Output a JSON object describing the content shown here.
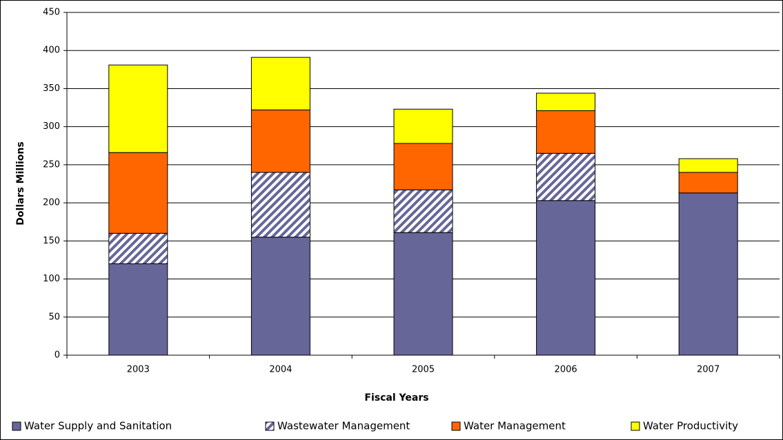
{
  "chart_data": {
    "type": "stacked_bar",
    "x_label": "Fiscal Years",
    "y_label": "Dollars Millions",
    "categories": [
      "2003",
      "2004",
      "2005",
      "2006",
      "2007"
    ],
    "series": [
      {
        "name": "Water Supply and Sanitation",
        "color": "#666699",
        "values": [
          120,
          155,
          161,
          203,
          213
        ]
      },
      {
        "name": "Wastewater Management",
        "color": "#666699",
        "pattern": "hatch",
        "values": [
          40,
          85,
          56,
          62,
          0
        ]
      },
      {
        "name": "Water Management",
        "color": "#ff6600",
        "values": [
          106,
          82,
          61,
          56,
          27
        ]
      },
      {
        "name": "Water Productivity",
        "color": "#ffff00",
        "values": [
          115,
          69,
          45,
          23,
          18
        ]
      }
    ],
    "ylim": [
      0,
      450
    ],
    "yticks": [
      0,
      50,
      100,
      150,
      200,
      250,
      300,
      350,
      400,
      450
    ],
    "grid": true,
    "legend": "bottom"
  }
}
